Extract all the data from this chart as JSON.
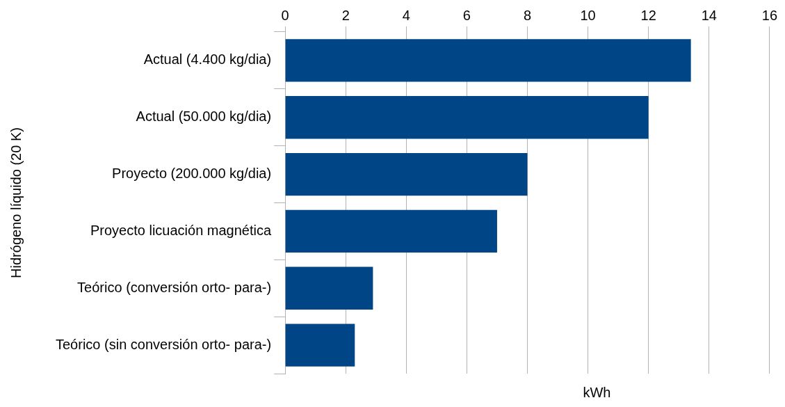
{
  "chart_data": {
    "type": "bar",
    "orientation": "horizontal",
    "ylabel": "Hidrógeno líquido (20 K)",
    "xlabel": "kWh",
    "categories": [
      "Actual (4.400 kg/dia)",
      "Actual (50.000 kg/dia)",
      "Proyecto (200.000 kg/dia)",
      "Proyecto licuación magnética",
      "Teórico (conversión orto- para-)",
      "Teórico (sin conversión orto- para-)"
    ],
    "values": [
      13.4,
      12,
      8,
      7,
      2.9,
      2.3
    ],
    "color": "#004586",
    "xlim": [
      0,
      16
    ],
    "xticks": [
      0,
      2,
      4,
      6,
      8,
      10,
      12,
      14,
      16
    ],
    "grid": "x",
    "legend": false
  }
}
